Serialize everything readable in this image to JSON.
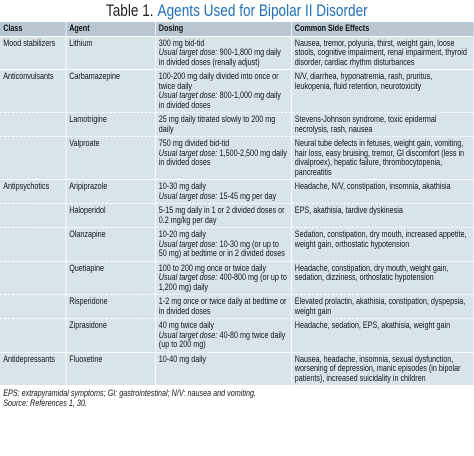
{
  "title": {
    "label": "Table 1.",
    "text": "Agents Used for Bipolar II Disorder"
  },
  "table": {
    "header": [
      "Class",
      "Agent",
      "Dosing",
      "Common Side Effects"
    ],
    "rows": [
      {
        "class": "Mood stabilizers",
        "agent": "Lithium",
        "dosing": [
          [
            {
              "text": "300 mg bid-tid"
            }
          ],
          [
            {
              "text": "Usual target dose:",
              "italic": true
            },
            {
              "text": "900-1,800 mg daily in divided doses (renally adjust)"
            }
          ]
        ],
        "side_effects": "Nausea, tremor, polyuria, thirst, weight gain, loose stools, cognitive impairment, renal impairment, thyroid disorder, cardiac rhythm disturbances"
      },
      {
        "class": "Anticonvulsants",
        "agent": "Carbamazepine",
        "dosing": [
          [
            {
              "text": "100-200 mg daily divided into once or twice daily"
            }
          ],
          [
            {
              "text": "Usual target dose:",
              "italic": true
            },
            {
              "text": "800-1,000 mg daily in divided doses"
            }
          ]
        ],
        "side_effects": "N/V, diarrhea, hyponatremia, rash, pruritus, leukopenia, fluid retention, neurotoxicity"
      },
      {
        "agent": "Lamotrigine",
        "dosing": [
          [
            {
              "text": "25 mg daily titrated slowly to 200 mg daily"
            }
          ]
        ],
        "side_effects": "Stevens-Johnson syndrome, toxic epidermal necrolysis, rash, nausea"
      },
      {
        "agent": "Valproate",
        "dosing": [
          [
            {
              "text": "750 mg divided bid-tid"
            }
          ],
          [
            {
              "text": "Usual target dose:",
              "italic": true
            },
            {
              "text": "1,500-2,500 mg daily in divided doses"
            }
          ]
        ],
        "side_effects": "Neural tube defects in fetuses, weight gain, vomiting, hair loss, easy bruising, tremor, GI discomfort (less in divalproex), hepatic failure, thrombocytopenia, pancreatitis"
      },
      {
        "class": "Antipsychotics",
        "agent": "Aripiprazole",
        "dosing": [
          [
            {
              "text": "10-30 mg daily"
            }
          ],
          [
            {
              "text": "Usual target dose:",
              "italic": true
            },
            {
              "text": "15-45 mg per day"
            }
          ]
        ],
        "side_effects": "Headache, N/V, constipation, insomnia, akathisia"
      },
      {
        "agent": "Haloperidol",
        "dosing": [
          [
            {
              "text": "5-15 mg daily in 1 or 2 divided doses or 0.2 mg/kg per day"
            }
          ]
        ],
        "side_effects": "EPS, akathisia, tardive dyskinesia"
      },
      {
        "agent": "Olanzapine",
        "dosing": [
          [
            {
              "text": "10-20 mg daily"
            }
          ],
          [
            {
              "text": "Usual target dose:",
              "italic": true
            },
            {
              "text": "10-30 mg (or up to 50 mg) at bedtime or in 2 divided doses"
            }
          ]
        ],
        "side_effects": "Sedation, constipation, dry mouth, increased appetite, weight gain, orthostatic hypotension"
      },
      {
        "agent": "Quetiapine",
        "dosing": [
          [
            {
              "text": "100 to 200 mg once or twice daily"
            }
          ],
          [
            {
              "text": "Usual target dose:",
              "italic": true
            },
            {
              "text": "400-800 mg (or up to 1,200 mg) daily"
            }
          ]
        ],
        "side_effects": "Headache, constipation, dry mouth, weight gain, sedation, dizziness, orthostatic hypotension"
      },
      {
        "agent": "Risperidone",
        "dosing": [
          [
            {
              "text": "1-2 mg once or twice daily at bedtime or in divided doses"
            }
          ]
        ],
        "side_effects": "Elevated prolactin, akathisia, constipation, dyspepsia, weight gain"
      },
      {
        "agent": "Ziprasidone",
        "dosing": [
          [
            {
              "text": "40 mg twice daily"
            }
          ],
          [
            {
              "text": "Usual target dose:",
              "italic": true
            },
            {
              "text": "40-80 mg twice daily (up to 200 mg)"
            }
          ]
        ],
        "side_effects": "Headache, sedation, EPS, akathisia, weight gain"
      },
      {
        "class": "Antidepressants",
        "agent": "Fluoxetine",
        "dosing": [
          [
            {
              "text": "10-40 mg daily"
            }
          ]
        ],
        "side_effects": "Nausea, headache, insomnia, sexual dysfunction, worsening of depression, manic episodes (in bipolar patients), increased suicidality in children"
      }
    ]
  },
  "footnotes": [
    "EPS: extrapyramidal symptoms; GI: gastrointestinal; N/V: nausea and vomiting.",
    "Source: References 1, 30."
  ]
}
